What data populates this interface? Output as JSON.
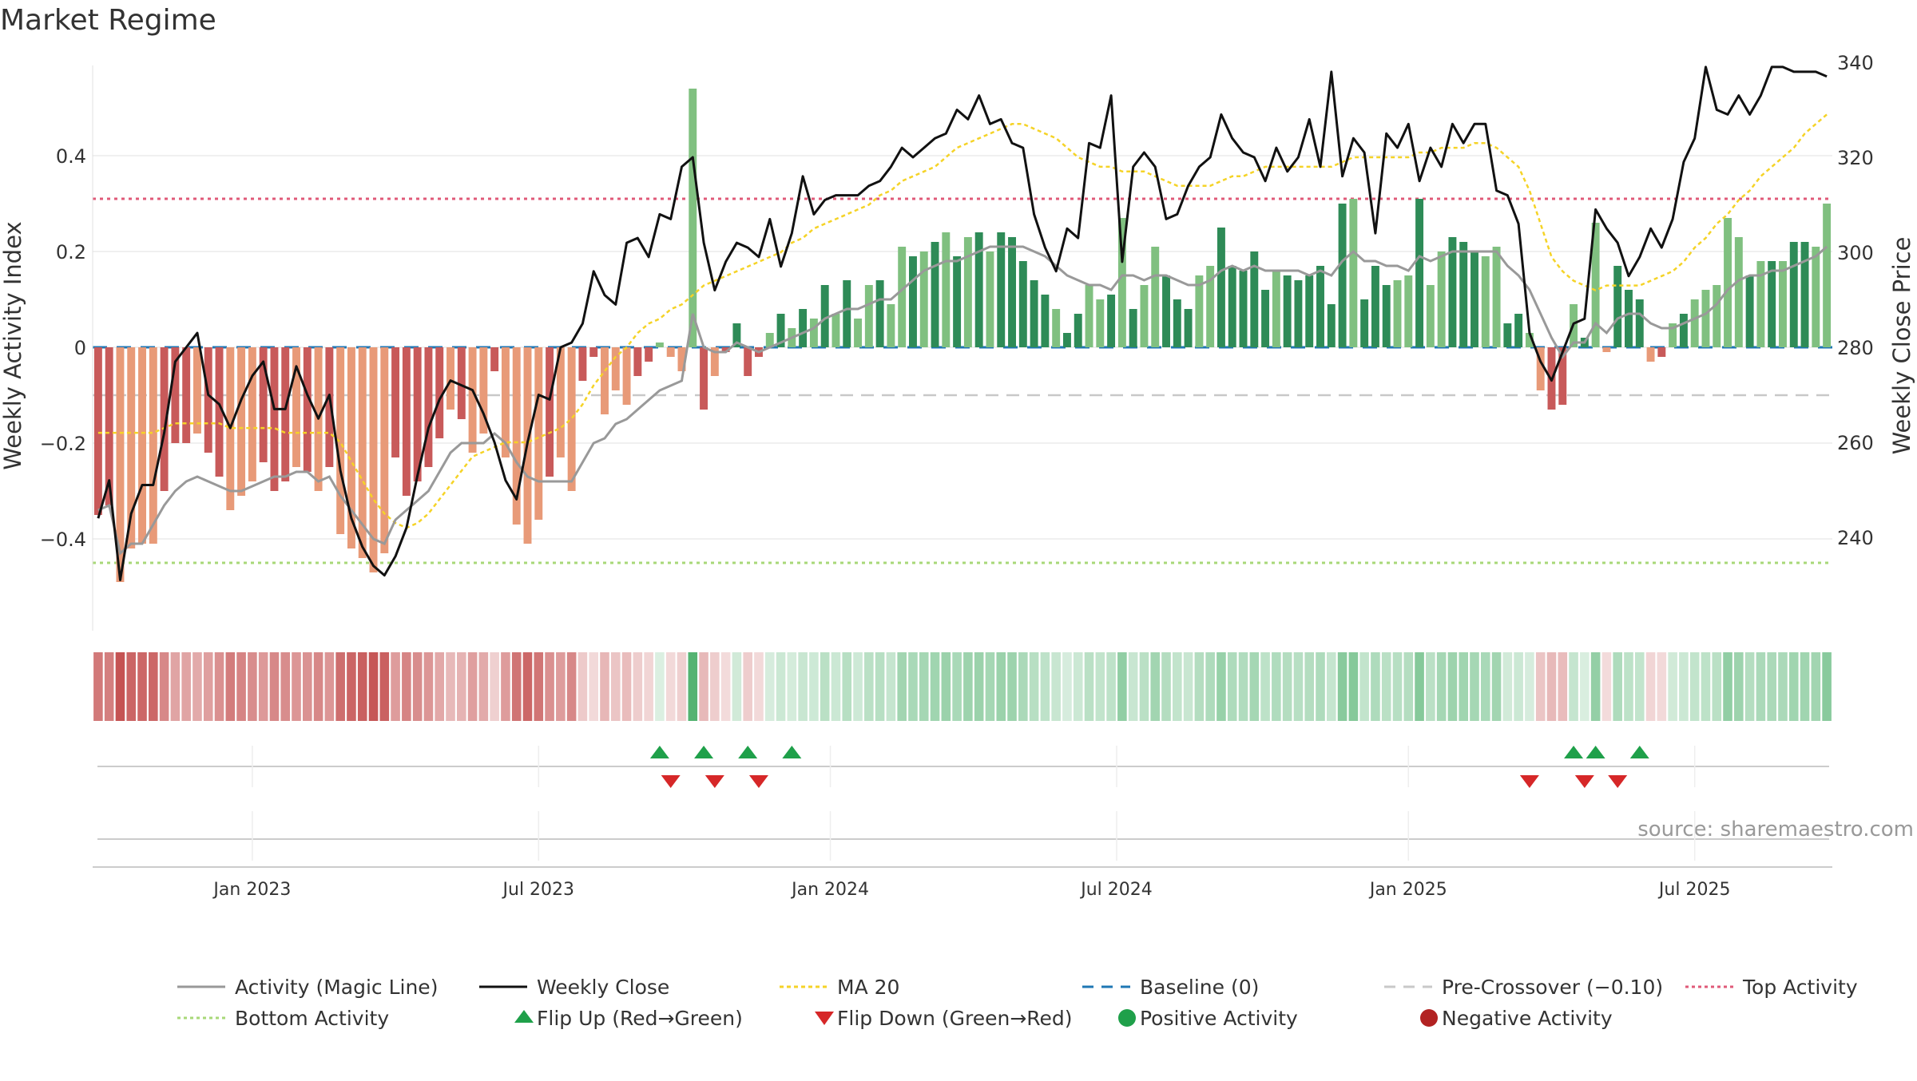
{
  "title": "Market Regime",
  "source": "source: sharemaestro.com",
  "colors": {
    "pos_dark": "#2E8B57",
    "pos_light": "#80C080",
    "neg_dark": "#C85A5A",
    "neg_light": "#E89A78",
    "close": "#111111",
    "magic": "#999999",
    "ma": "#F5D327",
    "baseline": "#1F77B4",
    "pre": "#C8C8C8",
    "top": "#E05A78",
    "bottom": "#A8D878",
    "flip_up": "#1FA04A",
    "flip_down": "#D62728"
  },
  "chart_data": {
    "type": "bar",
    "title": "Market Regime",
    "ylabel_left": "Weekly Activity Index",
    "ylabel_right": "Weekly Close Price",
    "yleft_ticks": [
      -0.4,
      -0.2,
      0,
      0.2,
      0.4
    ],
    "yleft_tick_labels": [
      "−0.4",
      "−0.2",
      "0",
      "0.2",
      "0.4"
    ],
    "yright_ticks": [
      240,
      260,
      280,
      300,
      320,
      340
    ],
    "yright_tick_labels": [
      "240",
      "260",
      "280",
      "300",
      "320",
      "340"
    ],
    "x_ticks": [
      "Jan 2023",
      "Jul 2023",
      "Jan 2024",
      "Jul 2024",
      "Jan 2025",
      "Jul 2025"
    ],
    "x_tick_weeks": [
      14.5,
      40.5,
      67,
      93,
      119.5,
      145.5
    ],
    "n_weeks": 158,
    "top_activity": 0.31,
    "bottom_activity": -0.45,
    "pre_crossover": -0.1,
    "baseline": 0,
    "activity": [
      -0.35,
      -0.33,
      -0.49,
      -0.42,
      -0.41,
      -0.41,
      -0.3,
      -0.2,
      -0.2,
      -0.18,
      -0.22,
      -0.27,
      -0.34,
      -0.31,
      -0.28,
      -0.24,
      -0.3,
      -0.28,
      -0.25,
      -0.26,
      -0.3,
      -0.25,
      -0.39,
      -0.42,
      -0.44,
      -0.47,
      -0.43,
      -0.23,
      -0.31,
      -0.28,
      -0.25,
      -0.19,
      -0.13,
      -0.15,
      -0.22,
      -0.18,
      -0.05,
      -0.23,
      -0.37,
      -0.41,
      -0.36,
      -0.27,
      -0.23,
      -0.3,
      -0.07,
      -0.02,
      -0.14,
      -0.09,
      -0.12,
      -0.06,
      -0.03,
      0.01,
      -0.02,
      -0.05,
      0.54,
      -0.13,
      -0.06,
      -0.01,
      0.05,
      -0.06,
      -0.02,
      0.03,
      0.07,
      0.04,
      0.08,
      0.06,
      0.13,
      0.07,
      0.14,
      0.06,
      0.13,
      0.14,
      0.09,
      0.21,
      0.19,
      0.2,
      0.22,
      0.24,
      0.19,
      0.23,
      0.24,
      0.2,
      0.24,
      0.23,
      0.18,
      0.14,
      0.11,
      0.08,
      0.03,
      0.07,
      0.13,
      0.1,
      0.11,
      0.27,
      0.08,
      0.13,
      0.21,
      0.15,
      0.1,
      0.08,
      0.15,
      0.17,
      0.25,
      0.17,
      0.16,
      0.2,
      0.12,
      0.16,
      0.15,
      0.14,
      0.15,
      0.17,
      0.09,
      0.3,
      0.31,
      0.1,
      0.17,
      0.13,
      0.14,
      0.15,
      0.31,
      0.13,
      0.2,
      0.23,
      0.22,
      0.2,
      0.19,
      0.21,
      0.05,
      0.07,
      0.03,
      -0.09,
      -0.13,
      -0.12,
      0.09,
      0.02,
      0.26,
      -0.01,
      0.17,
      0.12,
      0.1,
      -0.03,
      -0.02,
      0.05,
      0.07,
      0.1,
      0.12,
      0.13,
      0.27,
      0.23,
      0.15,
      0.18,
      0.18,
      0.18,
      0.22,
      0.22,
      0.21,
      0.3
    ],
    "close": [
      244,
      252,
      231,
      245,
      251,
      251,
      262,
      277,
      280,
      283,
      270,
      268,
      263,
      269,
      274,
      277,
      267,
      267,
      276,
      270,
      265,
      270,
      254,
      244,
      238,
      234,
      232,
      236,
      242,
      253,
      263,
      269,
      273,
      272,
      271,
      266,
      260,
      252,
      248,
      260,
      270,
      269,
      280,
      281,
      285,
      296,
      291,
      289,
      302,
      303,
      299,
      308,
      307,
      318,
      320,
      302,
      292,
      298,
      302,
      301,
      299,
      307,
      297,
      304,
      316,
      308,
      311,
      312,
      312,
      312,
      314,
      315,
      318,
      322,
      320,
      322,
      324,
      325,
      330,
      328,
      333,
      327,
      328,
      323,
      322,
      308,
      301,
      296,
      305,
      303,
      323,
      322,
      333,
      298,
      318,
      321,
      318,
      307,
      308,
      314,
      318,
      320,
      329,
      324,
      321,
      320,
      315,
      322,
      317,
      320,
      328,
      318,
      338,
      316,
      324,
      321,
      304,
      325,
      322,
      327,
      315,
      322,
      318,
      327,
      323,
      327,
      327,
      313,
      312,
      306,
      283,
      277,
      273,
      279,
      285,
      286,
      309,
      305,
      302,
      295,
      299,
      305,
      301,
      307,
      319,
      324,
      339,
      330,
      329,
      333,
      329,
      333,
      339,
      339,
      338,
      338,
      338,
      337
    ],
    "magic": [
      -0.34,
      -0.33,
      -0.43,
      -0.41,
      -0.41,
      -0.37,
      -0.33,
      -0.3,
      -0.28,
      -0.27,
      -0.28,
      -0.29,
      -0.3,
      -0.3,
      -0.29,
      -0.28,
      -0.27,
      -0.27,
      -0.26,
      -0.26,
      -0.28,
      -0.27,
      -0.31,
      -0.34,
      -0.37,
      -0.4,
      -0.41,
      -0.36,
      -0.34,
      -0.32,
      -0.3,
      -0.26,
      -0.22,
      -0.2,
      -0.2,
      -0.2,
      -0.18,
      -0.2,
      -0.24,
      -0.27,
      -0.28,
      -0.28,
      -0.28,
      -0.28,
      -0.24,
      -0.2,
      -0.19,
      -0.16,
      -0.15,
      -0.13,
      -0.11,
      -0.09,
      -0.08,
      -0.07,
      0.07,
      0.0,
      -0.01,
      -0.01,
      0.01,
      0.0,
      -0.01,
      -0.0,
      0.01,
      0.02,
      0.03,
      0.04,
      0.06,
      0.07,
      0.08,
      0.08,
      0.09,
      0.1,
      0.1,
      0.12,
      0.14,
      0.16,
      0.17,
      0.18,
      0.18,
      0.19,
      0.2,
      0.21,
      0.21,
      0.21,
      0.21,
      0.2,
      0.19,
      0.17,
      0.15,
      0.14,
      0.13,
      0.13,
      0.12,
      0.15,
      0.15,
      0.14,
      0.15,
      0.15,
      0.14,
      0.13,
      0.13,
      0.14,
      0.16,
      0.17,
      0.16,
      0.17,
      0.16,
      0.16,
      0.16,
      0.16,
      0.15,
      0.16,
      0.15,
      0.18,
      0.2,
      0.18,
      0.18,
      0.17,
      0.17,
      0.16,
      0.19,
      0.18,
      0.19,
      0.2,
      0.2,
      0.2,
      0.2,
      0.2,
      0.17,
      0.15,
      0.12,
      0.07,
      0.02,
      -0.02,
      0.01,
      0.01,
      0.05,
      0.03,
      0.06,
      0.07,
      0.07,
      0.05,
      0.04,
      0.04,
      0.05,
      0.06,
      0.07,
      0.09,
      0.12,
      0.14,
      0.15,
      0.15,
      0.16,
      0.16,
      0.17,
      0.18,
      0.19,
      0.21
    ],
    "ma20": [
      262,
      262,
      262,
      262,
      262,
      262,
      263,
      264,
      264,
      264,
      264,
      264,
      263,
      263,
      263,
      263,
      263,
      262,
      262,
      262,
      262,
      262,
      260,
      256,
      252,
      248,
      245,
      243,
      242,
      243,
      245,
      248,
      251,
      254,
      257,
      258,
      259,
      260,
      260,
      260,
      261,
      262,
      263,
      265,
      268,
      272,
      275,
      278,
      280,
      283,
      285,
      286,
      288,
      289,
      291,
      293,
      294,
      295,
      296,
      297,
      298,
      299,
      300,
      302,
      303,
      305,
      306,
      307,
      308,
      309,
      310,
      312,
      313,
      315,
      316,
      317,
      318,
      320,
      322,
      323,
      324,
      325,
      326,
      327,
      327,
      326,
      325,
      324,
      322,
      320,
      319,
      318,
      318,
      317,
      317,
      317,
      316,
      315,
      314,
      314,
      314,
      314,
      315,
      316,
      316,
      317,
      318,
      318,
      318,
      318,
      318,
      318,
      318,
      319,
      320,
      320,
      320,
      320,
      320,
      320,
      321,
      321,
      322,
      322,
      322,
      323,
      323,
      322,
      320,
      318,
      313,
      306,
      299,
      296,
      294,
      293,
      292,
      293,
      293,
      293,
      293,
      294,
      295,
      296,
      298,
      301,
      303,
      306,
      308,
      311,
      313,
      316,
      318,
      320,
      322,
      325,
      327,
      329
    ],
    "shade": [
      1,
      1,
      0,
      0,
      0,
      0,
      1,
      1,
      1,
      0,
      1,
      1,
      0,
      0,
      0,
      1,
      1,
      1,
      0,
      1,
      0,
      1,
      0,
      0,
      0,
      0,
      0,
      1,
      1,
      1,
      1,
      1,
      0,
      1,
      0,
      0,
      1,
      0,
      0,
      0,
      0,
      1,
      0,
      0,
      1,
      1,
      0,
      0,
      0,
      1,
      1,
      0,
      0,
      0,
      0,
      1,
      0,
      1,
      1,
      1,
      1,
      0,
      1,
      0,
      1,
      0,
      1,
      0,
      1,
      0,
      0,
      1,
      0,
      0,
      1,
      0,
      1,
      0,
      1,
      0,
      1,
      0,
      1,
      1,
      1,
      1,
      1,
      0,
      1,
      1,
      0,
      0,
      1,
      0,
      1,
      0,
      0,
      1,
      1,
      1,
      0,
      0,
      1,
      1,
      1,
      1,
      1,
      0,
      1,
      1,
      1,
      1,
      1,
      1,
      0,
      1,
      1,
      1,
      0,
      0,
      1,
      0,
      0,
      1,
      1,
      1,
      0,
      0,
      1,
      1,
      0,
      0,
      1,
      1,
      0,
      1,
      0,
      0,
      1,
      1,
      1,
      0,
      1,
      0,
      1,
      0,
      0,
      0,
      0,
      0,
      1,
      0,
      1,
      0,
      1,
      1,
      0,
      0
    ],
    "flip_up_weeks": [
      51.5,
      55.5,
      59.5,
      63.5,
      134.5,
      136.5,
      140.5
    ],
    "flip_down_weeks": [
      52.5,
      56.5,
      60.5,
      130.5,
      135.5,
      138.5
    ],
    "legend": [
      [
        "magic",
        "Activity (Magic Line)"
      ],
      [
        "close",
        "Weekly Close"
      ],
      [
        "ma",
        "MA 20"
      ],
      [
        "baseline",
        "Baseline (0)"
      ],
      [
        "pre",
        "Pre-Crossover (−0.10)"
      ],
      [
        "top",
        "Top Activity"
      ],
      [
        "bottom",
        "Bottom Activity"
      ],
      [
        "flip_up",
        "Flip Up (Red→Green)"
      ],
      [
        "flip_down",
        "Flip Down (Green→Red)"
      ],
      [
        "pos_dot",
        "Positive Activity"
      ],
      [
        "neg_dot",
        "Negative Activity"
      ]
    ],
    "legend_position": "bottom"
  }
}
